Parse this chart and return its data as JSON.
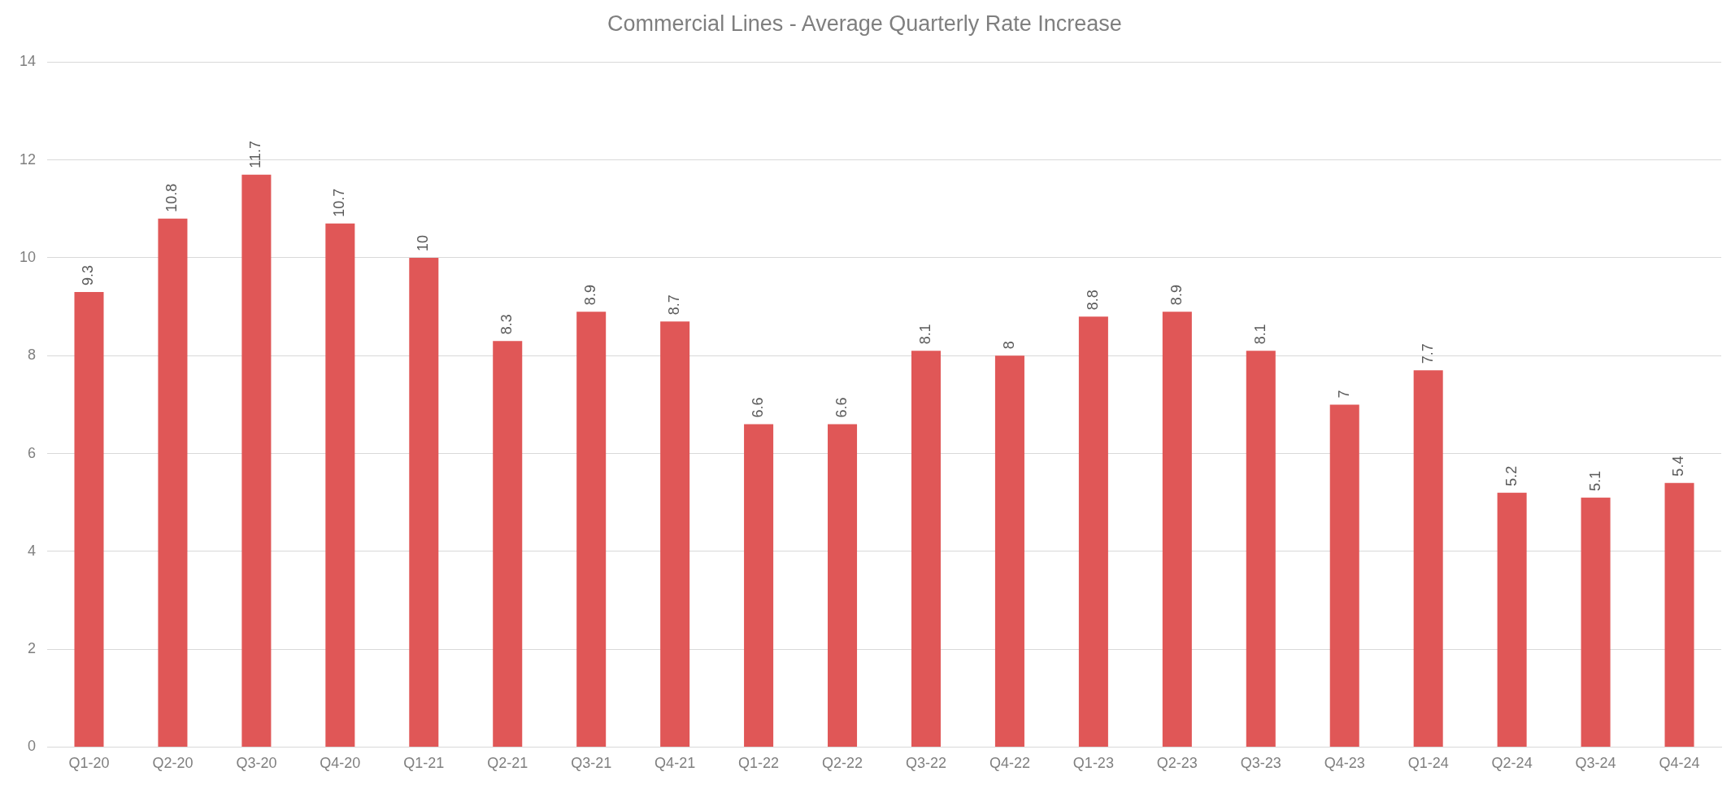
{
  "chart_data": {
    "type": "bar",
    "title": "Commercial Lines - Average Quarterly Rate Increase",
    "categories": [
      "Q1-20",
      "Q2-20",
      "Q3-20",
      "Q4-20",
      "Q1-21",
      "Q2-21",
      "Q3-21",
      "Q4-21",
      "Q1-22",
      "Q2-22",
      "Q3-22",
      "Q4-22",
      "Q1-23",
      "Q2-23",
      "Q3-23",
      "Q4-23",
      "Q1-24",
      "Q2-24",
      "Q3-24",
      "Q4-24"
    ],
    "values": [
      9.3,
      10.8,
      11.7,
      10.7,
      10,
      8.3,
      8.9,
      8.7,
      6.6,
      6.6,
      8.1,
      8,
      8.8,
      8.9,
      8.1,
      7,
      7.7,
      5.2,
      5.1,
      5.4
    ],
    "color": "#e05757",
    "ylim": [
      0,
      14
    ],
    "yticks": [
      0,
      2,
      4,
      6,
      8,
      10,
      12,
      14
    ],
    "grid": "y",
    "data_labels": true
  }
}
